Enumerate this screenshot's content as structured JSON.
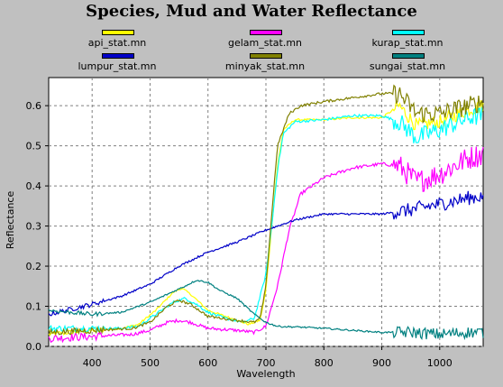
{
  "window": {
    "title": "Species, Mud and Water Reflectance"
  },
  "chart_data": {
    "type": "line",
    "title": "Species, Mud and Water Reflectance",
    "xlabel": "Wavelength",
    "ylabel": "Reflectance",
    "xlim": [
      325,
      1075
    ],
    "ylim": [
      0.0,
      0.67
    ],
    "xticks": [
      400,
      500,
      600,
      700,
      800,
      900,
      1000
    ],
    "yticks": [
      0.0,
      0.1,
      0.2,
      0.3,
      0.4,
      0.5,
      0.6
    ],
    "ytick_labels": [
      "0.0",
      "0.1",
      "0.2",
      "0.3",
      "0.4",
      "0.5",
      "0.6"
    ],
    "grid": true,
    "legend_position": "top",
    "series": [
      {
        "name": "api_stat.mn",
        "color": "#ffff00",
        "noise": 0.006,
        "x": [
          325,
          400,
          450,
          480,
          510,
          540,
          555,
          570,
          600,
          640,
          670,
          690,
          700,
          710,
          720,
          730,
          750,
          800,
          850,
          900,
          930,
          960,
          1000,
          1050,
          1075
        ],
        "y": [
          0.03,
          0.04,
          0.045,
          0.055,
          0.09,
          0.135,
          0.145,
          0.13,
          0.09,
          0.07,
          0.055,
          0.065,
          0.14,
          0.3,
          0.45,
          0.54,
          0.565,
          0.565,
          0.57,
          0.57,
          0.6,
          0.55,
          0.56,
          0.59,
          0.6
        ]
      },
      {
        "name": "gelam_stat.mn",
        "color": "#ff00ff",
        "noise": 0.01,
        "x": [
          325,
          400,
          470,
          500,
          530,
          550,
          570,
          600,
          650,
          680,
          700,
          720,
          740,
          760,
          800,
          850,
          900,
          930,
          960,
          1000,
          1050,
          1075
        ],
        "y": [
          0.02,
          0.025,
          0.03,
          0.04,
          0.06,
          0.065,
          0.06,
          0.045,
          0.04,
          0.035,
          0.05,
          0.15,
          0.29,
          0.38,
          0.42,
          0.445,
          0.455,
          0.45,
          0.41,
          0.43,
          0.47,
          0.48
        ]
      },
      {
        "name": "kurap_stat.mn",
        "color": "#00ffff",
        "noise": 0.008,
        "x": [
          325,
          400,
          450,
          480,
          510,
          540,
          560,
          580,
          600,
          630,
          660,
          680,
          700,
          710,
          720,
          730,
          750,
          800,
          850,
          900,
          930,
          960,
          1000,
          1050,
          1075
        ],
        "y": [
          0.045,
          0.045,
          0.045,
          0.05,
          0.08,
          0.11,
          0.12,
          0.105,
          0.085,
          0.07,
          0.06,
          0.07,
          0.18,
          0.3,
          0.44,
          0.53,
          0.56,
          0.565,
          0.575,
          0.575,
          0.56,
          0.52,
          0.54,
          0.57,
          0.575
        ]
      },
      {
        "name": "lumpur_stat.mn",
        "color": "#0000c8",
        "noise": 0.006,
        "x": [
          325,
          400,
          450,
          500,
          550,
          600,
          650,
          700,
          750,
          800,
          850,
          900,
          950,
          1000,
          1050,
          1075
        ],
        "y": [
          0.08,
          0.105,
          0.125,
          0.155,
          0.2,
          0.235,
          0.26,
          0.29,
          0.315,
          0.33,
          0.33,
          0.33,
          0.34,
          0.355,
          0.37,
          0.375
        ]
      },
      {
        "name": "minyak_stat.mn",
        "color": "#808000",
        "noise": 0.008,
        "x": [
          325,
          400,
          470,
          500,
          530,
          550,
          570,
          600,
          650,
          680,
          690,
          700,
          710,
          720,
          740,
          760,
          800,
          850,
          900,
          930,
          960,
          1000,
          1050,
          1075
        ],
        "y": [
          0.035,
          0.04,
          0.045,
          0.06,
          0.1,
          0.115,
          0.105,
          0.075,
          0.065,
          0.06,
          0.07,
          0.15,
          0.33,
          0.5,
          0.58,
          0.6,
          0.61,
          0.62,
          0.63,
          0.63,
          0.58,
          0.58,
          0.6,
          0.61
        ]
      },
      {
        "name": "sungai_stat.mn",
        "color": "#008080",
        "noise": 0.005,
        "x": [
          325,
          400,
          450,
          500,
          530,
          560,
          580,
          600,
          620,
          650,
          680,
          700,
          720,
          760,
          800,
          850,
          900,
          950,
          1000,
          1050,
          1075
        ],
        "y": [
          0.09,
          0.08,
          0.085,
          0.11,
          0.13,
          0.15,
          0.165,
          0.16,
          0.14,
          0.12,
          0.08,
          0.06,
          0.05,
          0.048,
          0.045,
          0.04,
          0.035,
          0.035,
          0.03,
          0.035,
          0.035
        ]
      }
    ]
  }
}
